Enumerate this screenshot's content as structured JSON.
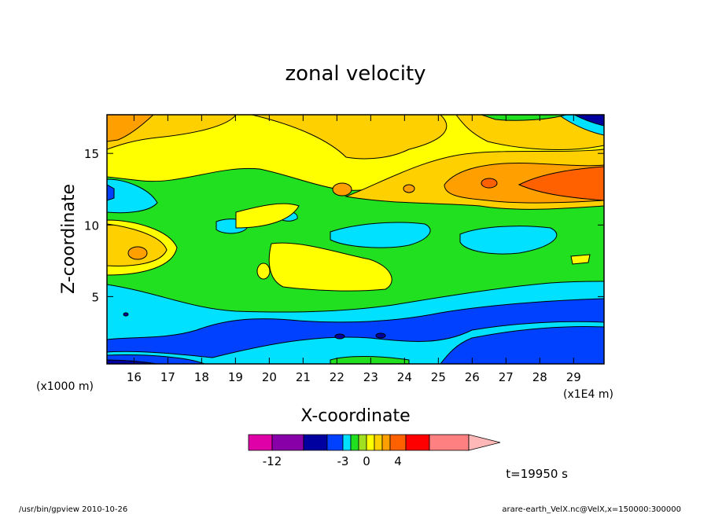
{
  "chart_data": {
    "type": "heatmap",
    "title": "zonal velocity",
    "xlabel": "X-coordinate",
    "ylabel": "Z-coordinate",
    "xlim": [
      15.2,
      29.9
    ],
    "ylim": [
      0.3,
      17.7
    ],
    "x_ticks": [
      16,
      17,
      18,
      19,
      20,
      21,
      22,
      23,
      24,
      25,
      26,
      27,
      28,
      29
    ],
    "y_ticks": [
      5,
      10,
      15
    ],
    "x_scale_label": "(x1E4 m)",
    "y_scale_label": "(x1000 m)",
    "colorbar": {
      "colors": [
        "#e000a8",
        "#8800a8",
        "#0000a0",
        "#0040ff",
        "#00e0ff",
        "#20e020",
        "#a0e020",
        "#ffff00",
        "#ffd000",
        "#ffa000",
        "#ff6000",
        "#ff0000",
        "#ff8080",
        "#ffb8b8"
      ],
      "tick_labels": [
        "-12",
        "-3",
        "0",
        "4"
      ]
    },
    "time_label": "t=19950 s",
    "levels": {
      "Z_gt_15": "orange/yellow, dark blue top-right corner",
      "Z_10_15": "yellow-orange band, orange core near x=27-29",
      "Z_5_10": "green and yellow mix, cyan patches",
      "Z_lt_5": "cyan to blue band with dark blue near bottom"
    }
  },
  "footer": {
    "left": "/usr/bin/gpview   2010-10-26",
    "right": "arare-earth_VelX.nc@VelX,x=150000:300000"
  }
}
